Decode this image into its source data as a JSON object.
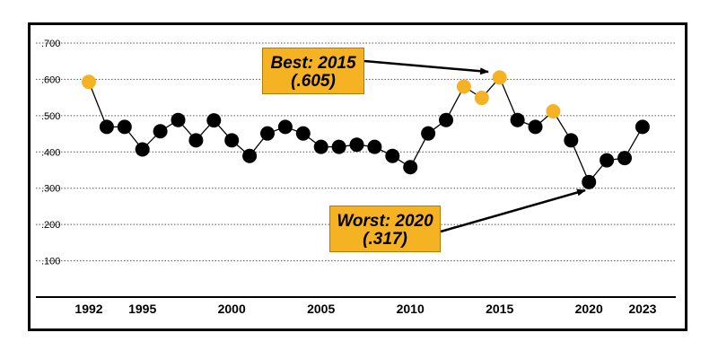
{
  "colors": {
    "normal_point": "#000000",
    "highlight_point": "#f5b323",
    "callout_bg": "#f5b323",
    "line": "#000000"
  },
  "callouts": {
    "best": {
      "line1": "Best: 2015",
      "line2": "(.605)"
    },
    "worst": {
      "line1": "Worst: 2020",
      "line2": "(.317)"
    }
  },
  "chart_data": {
    "type": "line",
    "title": "",
    "xlabel": "",
    "ylabel": "",
    "ylim": [
      0,
      0.7
    ],
    "y_ticks": [
      0.1,
      0.2,
      0.3,
      0.4,
      0.5,
      0.6,
      0.7
    ],
    "y_tick_labels": [
      ".100",
      ".200",
      ".300",
      ".400",
      ".500",
      ".600",
      ".700"
    ],
    "x_ticks": [
      1992,
      1995,
      2000,
      2005,
      2010,
      2015,
      2020,
      2023
    ],
    "x_tick_labels": [
      "1992",
      "1995",
      "2000",
      "2005",
      "2010",
      "2015",
      "2020",
      "2023"
    ],
    "grid": "horizontal dotted",
    "points": [
      {
        "x": 1992,
        "y": 0.593,
        "highlight": true
      },
      {
        "x": 1993,
        "y": 0.469,
        "highlight": false
      },
      {
        "x": 1994,
        "y": 0.469,
        "highlight": false
      },
      {
        "x": 1995,
        "y": 0.407,
        "highlight": false
      },
      {
        "x": 1996,
        "y": 0.457,
        "highlight": false
      },
      {
        "x": 1997,
        "y": 0.488,
        "highlight": false
      },
      {
        "x": 1998,
        "y": 0.432,
        "highlight": false
      },
      {
        "x": 1999,
        "y": 0.487,
        "highlight": false
      },
      {
        "x": 2000,
        "y": 0.432,
        "highlight": false
      },
      {
        "x": 2001,
        "y": 0.389,
        "highlight": false
      },
      {
        "x": 2002,
        "y": 0.451,
        "highlight": false
      },
      {
        "x": 2003,
        "y": 0.469,
        "highlight": false
      },
      {
        "x": 2004,
        "y": 0.451,
        "highlight": false
      },
      {
        "x": 2005,
        "y": 0.414,
        "highlight": false
      },
      {
        "x": 2006,
        "y": 0.414,
        "highlight": false
      },
      {
        "x": 2007,
        "y": 0.42,
        "highlight": false
      },
      {
        "x": 2008,
        "y": 0.414,
        "highlight": false
      },
      {
        "x": 2009,
        "y": 0.389,
        "highlight": false
      },
      {
        "x": 2010,
        "y": 0.358,
        "highlight": false
      },
      {
        "x": 2011,
        "y": 0.451,
        "highlight": false
      },
      {
        "x": 2012,
        "y": 0.488,
        "highlight": false
      },
      {
        "x": 2013,
        "y": 0.58,
        "highlight": true
      },
      {
        "x": 2014,
        "y": 0.549,
        "highlight": true
      },
      {
        "x": 2015,
        "y": 0.605,
        "highlight": true
      },
      {
        "x": 2016,
        "y": 0.488,
        "highlight": false
      },
      {
        "x": 2017,
        "y": 0.469,
        "highlight": false
      },
      {
        "x": 2018,
        "y": 0.512,
        "highlight": true
      },
      {
        "x": 2019,
        "y": 0.432,
        "highlight": false
      },
      {
        "x": 2020,
        "y": 0.317,
        "highlight": false
      },
      {
        "x": 2021,
        "y": 0.377,
        "highlight": false
      },
      {
        "x": 2022,
        "y": 0.383,
        "highlight": false
      },
      {
        "x": 2023,
        "y": 0.469,
        "highlight": false
      }
    ]
  }
}
